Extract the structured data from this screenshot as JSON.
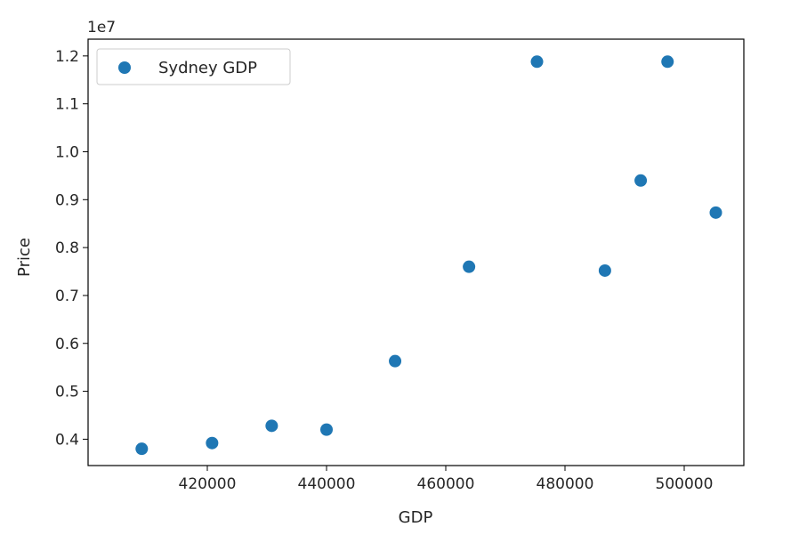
{
  "chart_data": {
    "type": "scatter",
    "title": "",
    "xlabel": "GDP",
    "ylabel": "Price",
    "y_offset_label": "1e7",
    "xlim": [
      400000,
      510000
    ],
    "ylim": [
      0.345,
      1.235
    ],
    "x_ticks": [
      420000,
      440000,
      460000,
      480000,
      500000
    ],
    "x_tick_labels": [
      "420000",
      "440000",
      "460000",
      "480000",
      "500000"
    ],
    "y_ticks": [
      0.4,
      0.5,
      0.6,
      0.7,
      0.8,
      0.9,
      1.0,
      1.1,
      1.2
    ],
    "y_tick_labels": [
      "0.4",
      "0.5",
      "0.6",
      "0.7",
      "0.8",
      "0.9",
      "1.0",
      "1.1",
      "1.2"
    ],
    "grid": false,
    "legend_position": "top-left",
    "series": [
      {
        "name": "Sydney GDP",
        "color": "#1f77b4",
        "points": [
          {
            "x": 409000,
            "y": 0.38
          },
          {
            "x": 420800,
            "y": 0.392
          },
          {
            "x": 430800,
            "y": 0.428
          },
          {
            "x": 440000,
            "y": 0.42
          },
          {
            "x": 451500,
            "y": 0.563
          },
          {
            "x": 463900,
            "y": 0.76
          },
          {
            "x": 475300,
            "y": 1.188
          },
          {
            "x": 486700,
            "y": 0.752
          },
          {
            "x": 492700,
            "y": 0.94
          },
          {
            "x": 497200,
            "y": 1.188
          },
          {
            "x": 505300,
            "y": 0.873
          }
        ]
      }
    ]
  }
}
